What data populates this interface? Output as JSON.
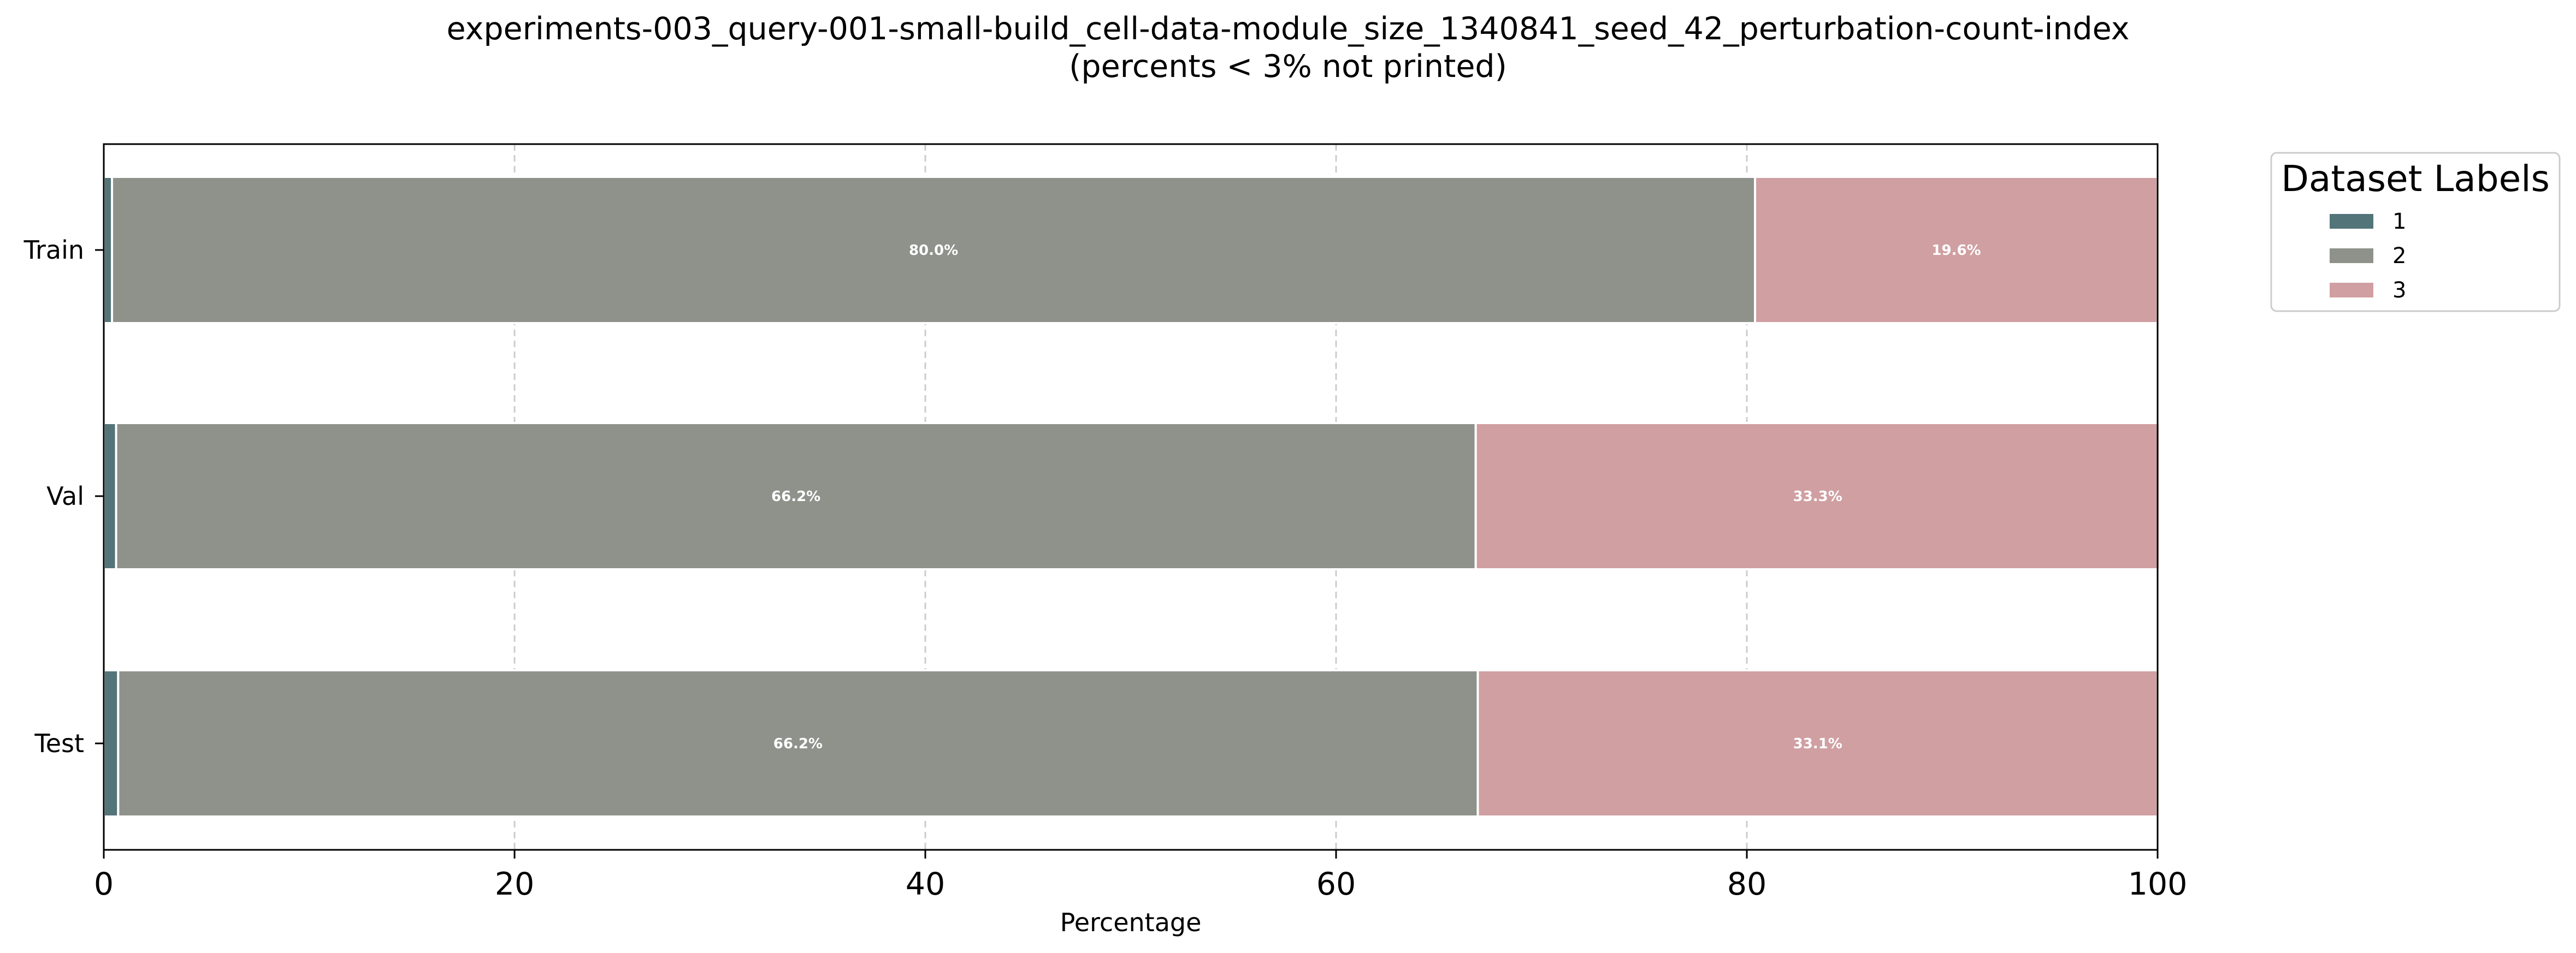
{
  "chart_data": {
    "type": "bar",
    "orientation": "horizontal",
    "stacked": true,
    "title": "experiments-003_query-001-small-build_cell-data-module_size_1340841_seed_42_perturbation-count-index",
    "subtitle": "(percents < 3% not printed)",
    "xlabel": "Percentage",
    "ylabel": "",
    "xlim": [
      0,
      100
    ],
    "xticks": [
      0,
      20,
      40,
      60,
      80,
      100
    ],
    "grid": "x, dashed",
    "categories": [
      "Train",
      "Val",
      "Test"
    ],
    "series": [
      {
        "name": "1",
        "color": "#537479",
        "values": [
          0.4,
          0.6,
          0.7
        ],
        "labels": [
          "",
          "",
          ""
        ]
      },
      {
        "name": "2",
        "color": "#8f928b",
        "values": [
          80.0,
          66.2,
          66.2
        ],
        "labels": [
          "80.0%",
          "66.2%",
          "66.2%"
        ]
      },
      {
        "name": "3",
        "color": "#d09fa2",
        "values": [
          19.6,
          33.3,
          33.1
        ],
        "labels": [
          "19.6%",
          "33.3%",
          "33.1%"
        ]
      }
    ],
    "legend": {
      "title": "Dataset Labels",
      "placement": "outside upper right"
    }
  }
}
